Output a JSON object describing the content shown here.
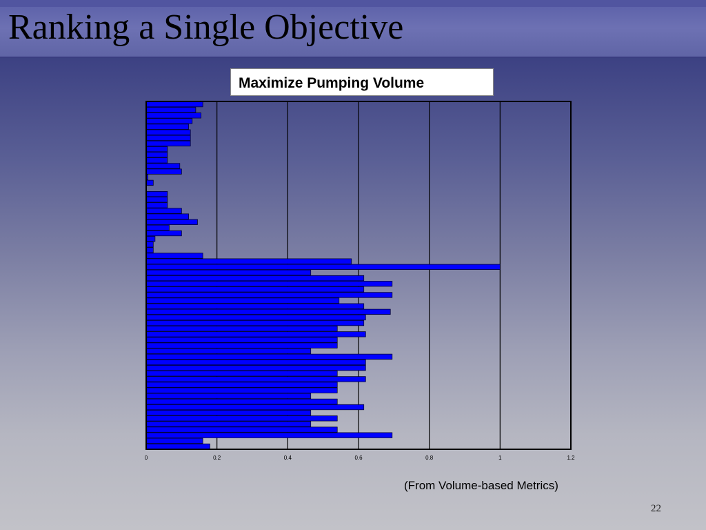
{
  "slide": {
    "title": "Ranking a Single Objective",
    "source_note": "(From Volume-based Metrics)",
    "page_number": "22"
  },
  "colors": {
    "bar_fill": "#0000ff",
    "bar_stroke": "#000033",
    "plot_background": "#7b7ea3"
  },
  "chart_data": {
    "type": "bar",
    "orientation": "horizontal",
    "title": "Maximize Pumping Volume",
    "xlabel": "",
    "ylabel": "",
    "xlim": [
      0,
      1.2
    ],
    "xticks": [
      "0",
      "0.2",
      "0.4",
      "0.6",
      "0.8",
      "1",
      "1.2"
    ],
    "grid": "vertical",
    "legend": "none",
    "values": [
      0.16,
      0.14,
      0.155,
      0.13,
      0.12,
      0.125,
      0.125,
      0.125,
      0.06,
      0.06,
      0.06,
      0.095,
      0.1,
      0.005,
      0.02,
      0.0,
      0.06,
      0.06,
      0.06,
      0.1,
      0.12,
      0.145,
      0.065,
      0.1,
      0.025,
      0.02,
      0.02,
      0.16,
      0.58,
      1.0,
      0.465,
      0.615,
      0.695,
      0.615,
      0.695,
      0.545,
      0.615,
      0.69,
      0.62,
      0.615,
      0.54,
      0.62,
      0.54,
      0.54,
      0.465,
      0.695,
      0.62,
      0.62,
      0.54,
      0.62,
      0.54,
      0.54,
      0.465,
      0.54,
      0.615,
      0.465,
      0.54,
      0.465,
      0.54,
      0.695,
      0.16,
      0.18
    ]
  }
}
